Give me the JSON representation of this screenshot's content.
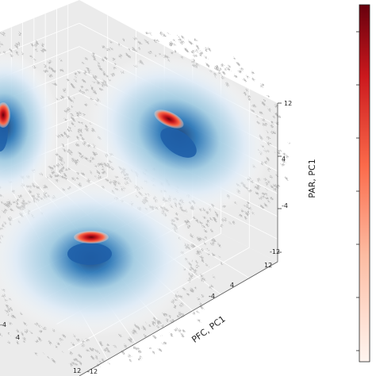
{
  "chart_data": {
    "type": "scatter",
    "projection": "3d",
    "title": "",
    "xlabel": "PFC, PC1",
    "zlabel": "PAR, PC1",
    "x_tick_labels": [
      "-12",
      "-4",
      "4",
      "12"
    ],
    "z_tick_labels": [
      "-12",
      "-4",
      "4",
      "12"
    ],
    "left_edge_tick_labels": [
      "-4",
      "4",
      "12"
    ],
    "pane_color": "#ebebeb",
    "grid": true,
    "projection_color": "#bdbdbd",
    "density_colormap": [
      "#ffffff",
      "#deebf7",
      "#6baed6",
      "#08519c"
    ],
    "overlay_colormap": [
      "#fff5f0",
      "#fc9272",
      "#cb181d",
      "#67000d"
    ],
    "colorbar": {
      "cmap": "Reds",
      "tick_labels": []
    },
    "panes": [
      {
        "name": "floor",
        "peak_center": [
          0,
          0
        ],
        "peak_value": 1.0
      },
      {
        "name": "right-wall",
        "peak_center": [
          0,
          0
        ],
        "peak_value": 1.0
      },
      {
        "name": "left-wall",
        "peak_center": [
          0,
          0
        ],
        "peak_value": 1.0
      }
    ]
  }
}
